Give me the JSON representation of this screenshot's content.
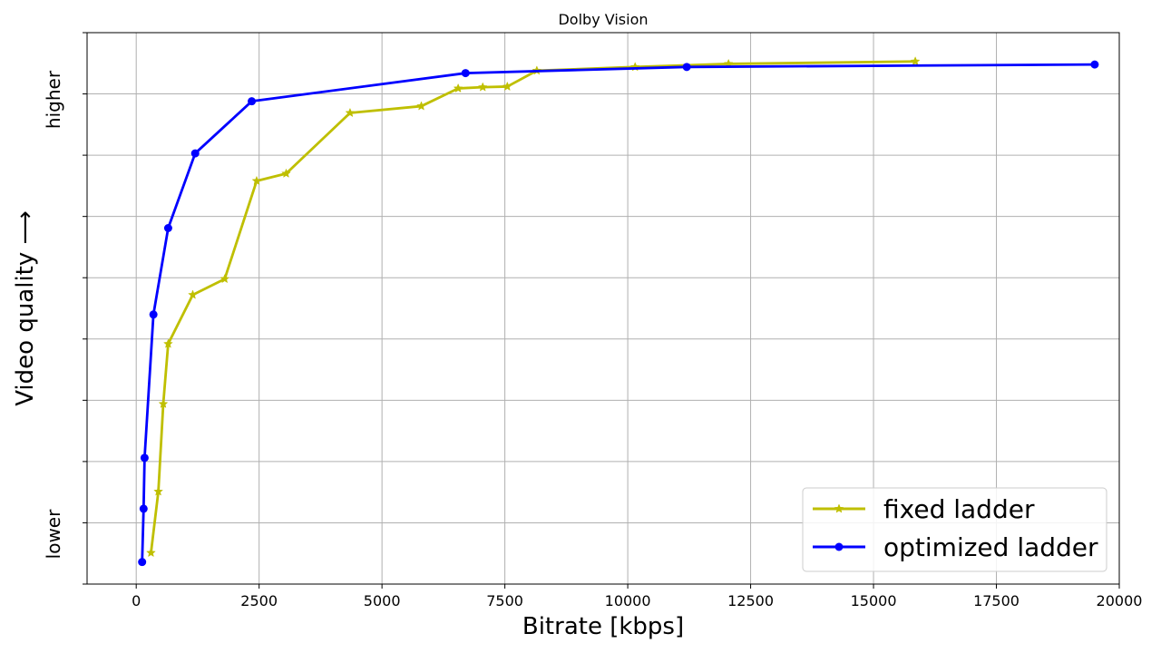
{
  "chart_data": {
    "type": "line",
    "title": "Dolby Vision",
    "xlabel": "Bitrate [kbps]",
    "ylabel": "Video quality ⟶",
    "y_high_label": "higher",
    "y_low_label": "lower",
    "xlim": [
      -1000,
      20000
    ],
    "ylim": [
      0,
      9
    ],
    "xticks": [
      0,
      2500,
      5000,
      7500,
      10000,
      12500,
      15000,
      17500,
      20000
    ],
    "xtick_labels": [
      "0",
      "2500",
      "5000",
      "7500",
      "10000",
      "12500",
      "15000",
      "17500",
      "20000"
    ],
    "yticks": [
      1,
      2,
      3,
      4,
      5,
      6,
      7,
      8,
      9
    ],
    "grid": true,
    "legend_position": "lower-right",
    "series": [
      {
        "name": "fixed ladder",
        "color": "#bfbf00",
        "marker": "star",
        "x": [
          300,
          450,
          550,
          650,
          1150,
          1800,
          2450,
          3050,
          4350,
          5800,
          6550,
          7050,
          7550,
          8150,
          10150,
          12050,
          15850
        ],
        "y": [
          0.51,
          1.51,
          2.94,
          3.92,
          4.72,
          4.98,
          6.58,
          6.7,
          7.69,
          7.8,
          8.09,
          8.11,
          8.12,
          8.38,
          8.44,
          8.49,
          8.53
        ]
      },
      {
        "name": "optimized ladder",
        "color": "#0000ff",
        "marker": "circle",
        "x": [
          120,
          150,
          170,
          350,
          650,
          1200,
          2350,
          6700,
          11200,
          19500
        ],
        "y": [
          0.36,
          1.23,
          2.06,
          4.4,
          5.81,
          7.03,
          7.88,
          8.34,
          8.44,
          8.48
        ]
      }
    ]
  }
}
